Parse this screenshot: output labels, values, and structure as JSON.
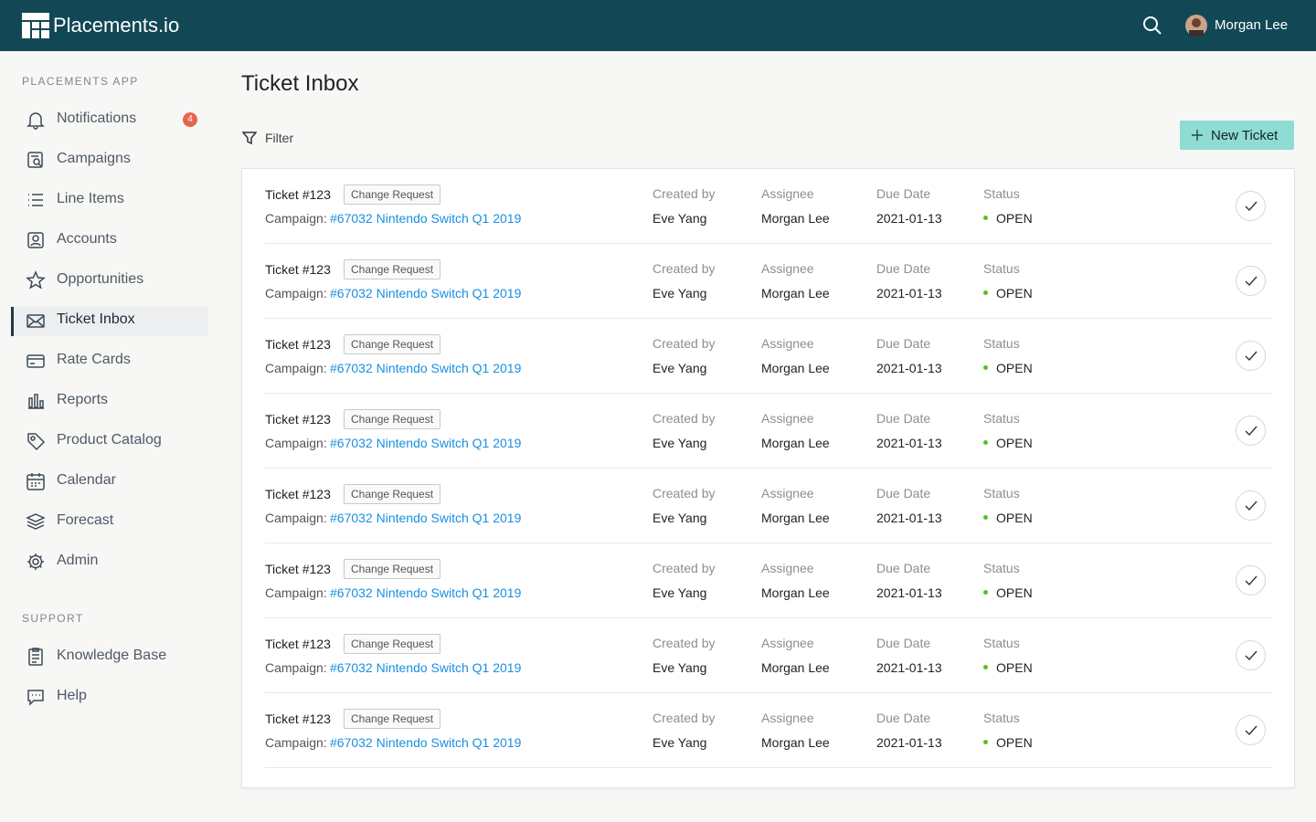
{
  "header": {
    "logo": "Placements.io",
    "user": "Morgan Lee"
  },
  "sidebar": {
    "sections": [
      {
        "title": "PLACEMENTS APP",
        "items": [
          {
            "label": "Notifications",
            "badge": 4
          },
          {
            "label": "Campaigns"
          },
          {
            "label": "Line Items"
          },
          {
            "label": "Accounts"
          },
          {
            "label": "Opportunities"
          },
          {
            "label": "Ticket Inbox",
            "active": true
          },
          {
            "label": "Rate Cards"
          },
          {
            "label": "Reports"
          },
          {
            "label": "Product Catalog"
          },
          {
            "label": "Calendar"
          },
          {
            "label": "Forecast"
          },
          {
            "label": "Admin"
          }
        ]
      },
      {
        "title": "SUPPORT",
        "items": [
          {
            "label": "Knowledge Base"
          },
          {
            "label": "Help"
          }
        ]
      }
    ]
  },
  "page": {
    "title": "Ticket Inbox",
    "filter": "Filter",
    "new_ticket": "New Ticket"
  },
  "labels": {
    "campaign": "Campaign:",
    "created_by": "Created by",
    "assignee": "Assignee",
    "due_date": "Due Date",
    "status": "Status"
  },
  "tickets": [
    {
      "ticket": "Ticket #123",
      "tag": "Change Request",
      "campaign": "#67032 Nintendo Switch Q1 2019",
      "created_by": "Eve Yang",
      "assignee": "Morgan Lee",
      "due_date": "2021-01-13",
      "status": "OPEN"
    },
    {
      "ticket": "Ticket #123",
      "tag": "Change Request",
      "campaign": "#67032 Nintendo Switch Q1 2019",
      "created_by": "Eve Yang",
      "assignee": "Morgan Lee",
      "due_date": "2021-01-13",
      "status": "OPEN"
    },
    {
      "ticket": "Ticket #123",
      "tag": "Change Request",
      "campaign": "#67032 Nintendo Switch Q1 2019",
      "created_by": "Eve Yang",
      "assignee": "Morgan Lee",
      "due_date": "2021-01-13",
      "status": "OPEN"
    },
    {
      "ticket": "Ticket #123",
      "tag": "Change Request",
      "campaign": "#67032 Nintendo Switch Q1 2019",
      "created_by": "Eve Yang",
      "assignee": "Morgan Lee",
      "due_date": "2021-01-13",
      "status": "OPEN"
    },
    {
      "ticket": "Ticket #123",
      "tag": "Change Request",
      "campaign": "#67032 Nintendo Switch Q1 2019",
      "created_by": "Eve Yang",
      "assignee": "Morgan Lee",
      "due_date": "2021-01-13",
      "status": "OPEN"
    },
    {
      "ticket": "Ticket #123",
      "tag": "Change Request",
      "campaign": "#67032 Nintendo Switch Q1 2019",
      "created_by": "Eve Yang",
      "assignee": "Morgan Lee",
      "due_date": "2021-01-13",
      "status": "OPEN"
    },
    {
      "ticket": "Ticket #123",
      "tag": "Change Request",
      "campaign": "#67032 Nintendo Switch Q1 2019",
      "created_by": "Eve Yang",
      "assignee": "Morgan Lee",
      "due_date": "2021-01-13",
      "status": "OPEN"
    },
    {
      "ticket": "Ticket #123",
      "tag": "Change Request",
      "campaign": "#67032 Nintendo Switch Q1 2019",
      "created_by": "Eve Yang",
      "assignee": "Morgan Lee",
      "due_date": "2021-01-13",
      "status": "OPEN"
    }
  ]
}
